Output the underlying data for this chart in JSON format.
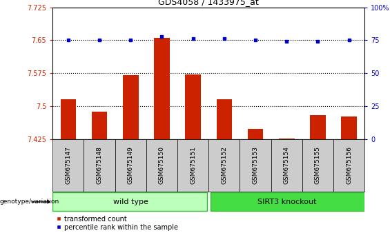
{
  "title": "GDS4058 / 1433975_at",
  "samples": [
    "GSM675147",
    "GSM675148",
    "GSM675149",
    "GSM675150",
    "GSM675151",
    "GSM675152",
    "GSM675153",
    "GSM675154",
    "GSM675155",
    "GSM675156"
  ],
  "bar_values": [
    7.516,
    7.488,
    7.57,
    7.655,
    7.572,
    7.516,
    7.448,
    7.427,
    7.48,
    7.477
  ],
  "percentile_values": [
    75,
    75,
    75,
    78,
    76,
    76,
    75,
    74,
    74,
    75
  ],
  "bar_color": "#cc2200",
  "dot_color": "#0000cc",
  "ylim_left": [
    7.425,
    7.725
  ],
  "ylim_right": [
    0,
    100
  ],
  "yticks_left": [
    7.425,
    7.5,
    7.575,
    7.65,
    7.725
  ],
  "yticks_right": [
    0,
    25,
    50,
    75,
    100
  ],
  "ytick_labels_left": [
    "7.425",
    "7.5",
    "7.575",
    "7.65",
    "7.725"
  ],
  "ytick_labels_right": [
    "0",
    "25",
    "50",
    "75",
    "100%"
  ],
  "hlines": [
    7.5,
    7.575,
    7.65
  ],
  "wild_type_label": "wild type",
  "knockout_label": "SIRT3 knockout",
  "genotype_label": "genotype/variation",
  "legend_bar_label": "transformed count",
  "legend_dot_label": "percentile rank within the sample",
  "wild_type_color": "#bbffbb",
  "knockout_color": "#44dd44",
  "bar_width": 0.5,
  "xtick_bg_color": "#cccccc",
  "border_color": "#888888"
}
